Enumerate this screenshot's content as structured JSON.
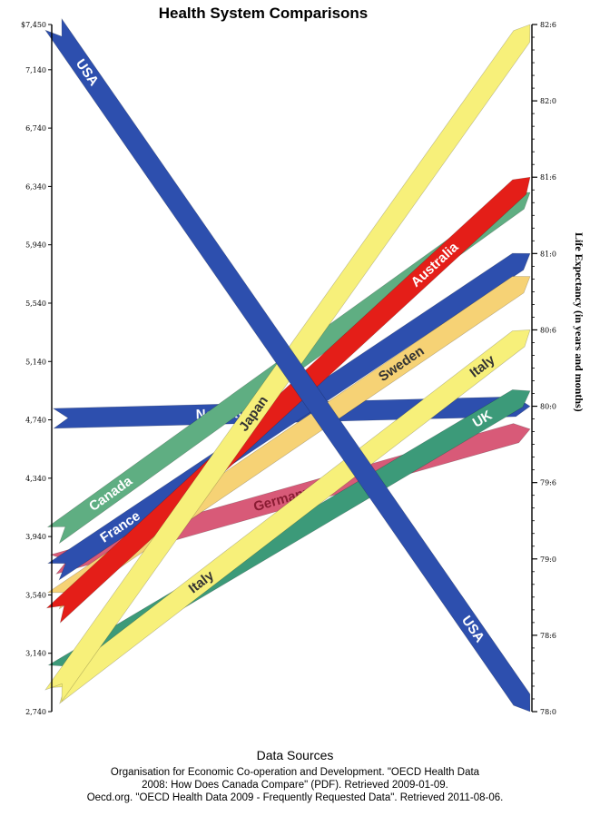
{
  "chart_data": {
    "type": "slope",
    "title": "Health System Comparisons",
    "left_axis": {
      "ticks": [
        "$7,450",
        "7,140",
        "6,740",
        "6,340",
        "5,940",
        "5,540",
        "5,140",
        "4,740",
        "4,340",
        "3,940",
        "3,540",
        "3,140",
        "2,740"
      ],
      "values": [
        7450,
        7140,
        6740,
        6340,
        5940,
        5540,
        5140,
        4740,
        4340,
        3940,
        3540,
        3140,
        2740
      ],
      "range": [
        2740,
        7450
      ]
    },
    "right_axis": {
      "label": "Life Expectancy (in years and months)",
      "ticks": [
        "82:6",
        "82:0",
        "81:6",
        "81:0",
        "80:6",
        "80:0",
        "79:6",
        "79:0",
        "78:6",
        "78:0"
      ],
      "range": [
        78.0,
        82.5
      ]
    },
    "series": [
      {
        "name": "Norway",
        "spending": 4750,
        "life_expectancy": 80.0,
        "color": "#2d4fae",
        "text_color": "#ffffff",
        "labels": [
          "Norway"
        ]
      },
      {
        "name": "Germany",
        "spending": 3750,
        "life_expectancy": 79.85,
        "color": "#d85a78",
        "text_color": "#8b1c33",
        "labels": [
          "Germany"
        ]
      },
      {
        "name": "UK",
        "spending": 3000,
        "life_expectancy": 80.1,
        "color": "#3c9a79",
        "text_color": "#ffffff",
        "labels": [
          "UK"
        ]
      },
      {
        "name": "Italy",
        "spending": 2850,
        "life_expectancy": 80.5,
        "color": "#f7f07a",
        "text_color": "#333333",
        "labels": [
          "Italy",
          "Italy"
        ]
      },
      {
        "name": "Canada",
        "spending": 3950,
        "life_expectancy": 81.4,
        "color": "#5fae82",
        "text_color": "#ffffff",
        "labels": [
          "Canada"
        ]
      },
      {
        "name": "France",
        "spending": 3700,
        "life_expectancy": 81.0,
        "color": "#2d4fae",
        "text_color": "#ffffff",
        "labels": [
          "France"
        ]
      },
      {
        "name": "Sweden",
        "spending": 3500,
        "life_expectancy": 80.85,
        "color": "#f6d275",
        "text_color": "#333333",
        "labels": [
          "Sweden"
        ]
      },
      {
        "name": "Australia",
        "spending": 3400,
        "life_expectancy": 81.5,
        "color": "#e41e18",
        "text_color": "#ffffff",
        "labels": [
          "Australia"
        ]
      },
      {
        "name": "Japan",
        "spending": 2850,
        "life_expectancy": 82.5,
        "color": "#f7f07a",
        "text_color": "#333333",
        "labels": [
          "Japan"
        ]
      },
      {
        "name": "USA",
        "spending": 7450,
        "life_expectancy": 78.0,
        "color": "#2d4fae",
        "text_color": "#ffffff",
        "labels": [
          "USA",
          "USA"
        ]
      }
    ]
  },
  "sources": {
    "heading": "Data Sources",
    "lines": [
      "Organisation for Economic Co-operation and Development. \"OECD Health Data",
      "2008: How Does Canada Compare\" (PDF). Retrieved 2009-01-09.",
      "Oecd.org.  \"OECD Health Data 2009 - Frequently Requested Data\".  Retrieved 2011-08-06."
    ]
  }
}
